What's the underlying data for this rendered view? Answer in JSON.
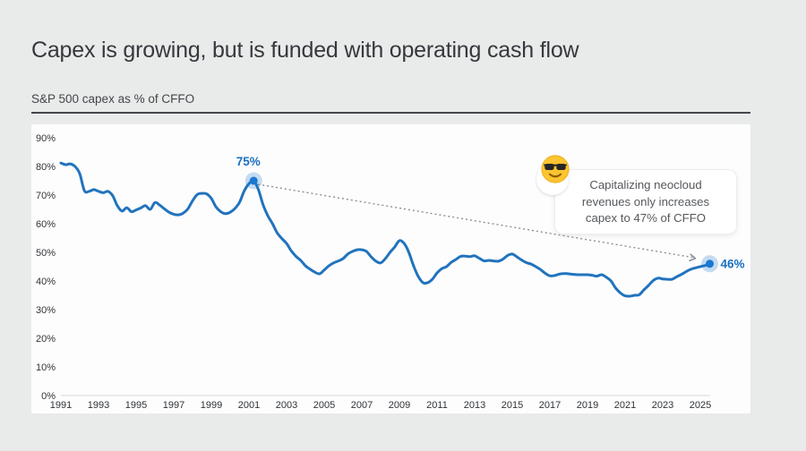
{
  "page": {
    "title": "Capex is growing, but is funded with operating cash flow",
    "subtitle": "S&P 500 capex as % of CFFO"
  },
  "chart_data": {
    "type": "line",
    "title": "S&P 500 capex as % of CFFO",
    "xlabel": "",
    "ylabel": "",
    "ylim": [
      0,
      90
    ],
    "xlim": [
      1991,
      2026
    ],
    "grid": false,
    "x_start": 1991,
    "x_step": 0.25,
    "values": [
      81.2,
      80.6,
      80.9,
      80.0,
      77.5,
      71.5,
      71.3,
      71.9,
      71.3,
      70.8,
      71.3,
      69.8,
      66.3,
      64.4,
      65.6,
      64.2,
      64.8,
      65.5,
      66.3,
      65.0,
      67.4,
      66.5,
      65.2,
      64.0,
      63.3,
      63.1,
      63.7,
      65.2,
      68.0,
      70.2,
      70.6,
      70.4,
      68.8,
      65.8,
      64.2,
      63.5,
      64.0,
      65.3,
      67.5,
      71.5,
      74.0,
      75.0,
      71.9,
      66.6,
      62.8,
      60.0,
      56.8,
      54.8,
      53.1,
      50.5,
      48.6,
      47.2,
      45.3,
      44.1,
      43.1,
      42.5,
      43.8,
      45.3,
      46.3,
      47.0,
      47.8,
      49.4,
      50.3,
      50.9,
      50.9,
      50.3,
      48.4,
      46.9,
      46.3,
      47.8,
      50.0,
      51.9,
      54.1,
      53.1,
      50.0,
      45.3,
      41.6,
      39.4,
      39.4,
      40.6,
      42.8,
      44.3,
      45.0,
      46.5,
      47.5,
      48.6,
      48.7,
      48.5,
      48.8,
      47.9,
      47.0,
      47.2,
      47.0,
      46.9,
      47.6,
      48.9,
      49.4,
      48.4,
      47.3,
      46.4,
      45.9,
      45.0,
      44.0,
      42.7,
      41.8,
      41.9,
      42.4,
      42.6,
      42.5,
      42.3,
      42.2,
      42.2,
      42.2,
      42.0,
      41.7,
      42.2,
      41.3,
      40.0,
      37.5,
      35.8,
      34.8,
      34.7,
      35.0,
      35.2,
      36.9,
      38.5,
      40.2,
      41.0,
      40.7,
      40.6,
      40.6,
      41.5,
      42.3,
      43.3,
      44.1,
      44.6,
      45.0,
      45.4,
      45.8
    ],
    "y_ticks": [
      {
        "v": 90,
        "label": "90%"
      },
      {
        "v": 80,
        "label": "80%"
      },
      {
        "v": 70,
        "label": "70%"
      },
      {
        "v": 60,
        "label": "60%"
      },
      {
        "v": 50,
        "label": "50%"
      },
      {
        "v": 40,
        "label": "40%"
      },
      {
        "v": 30,
        "label": "30%"
      },
      {
        "v": 20,
        "label": "20%"
      },
      {
        "v": 10,
        "label": "10%"
      },
      {
        "v": 0,
        "label": "0%"
      }
    ],
    "x_ticks": [
      {
        "v": 1991,
        "label": "1991"
      },
      {
        "v": 1993,
        "label": "1993"
      },
      {
        "v": 1995,
        "label": "1995"
      },
      {
        "v": 1997,
        "label": "1997"
      },
      {
        "v": 1999,
        "label": "1999"
      },
      {
        "v": 2001,
        "label": "2001"
      },
      {
        "v": 2003,
        "label": "2003"
      },
      {
        "v": 2005,
        "label": "2005"
      },
      {
        "v": 2007,
        "label": "2007"
      },
      {
        "v": 2009,
        "label": "2009"
      },
      {
        "v": 2011,
        "label": "2011"
      },
      {
        "v": 2013,
        "label": "2013"
      },
      {
        "v": 2015,
        "label": "2015"
      },
      {
        "v": 2017,
        "label": "2017"
      },
      {
        "v": 2019,
        "label": "2019"
      },
      {
        "v": 2021,
        "label": "2021"
      },
      {
        "v": 2023,
        "label": "2023"
      },
      {
        "v": 2025,
        "label": "2025"
      }
    ],
    "markers": [
      {
        "x": 2001.25,
        "v": 75,
        "label": "75%",
        "label_pos": "above"
      },
      {
        "x": 2025.5,
        "v": 46,
        "label": "46%",
        "label_pos": "right"
      }
    ],
    "callout": {
      "emoji": "smiling-face-with-sunglasses",
      "lines": [
        "Capitalizing neocloud",
        "revenues only increases",
        "capex to 47% of CFFO"
      ]
    },
    "colors": {
      "line": "#2173bd",
      "marker": "#1a78d2",
      "marker_halo": "rgba(26,120,210,0.25)",
      "marker_label": "#186fc0",
      "dotted": "#8a9096",
      "tick_text": "#2f3337",
      "baseline": "#d9d9d9"
    }
  }
}
